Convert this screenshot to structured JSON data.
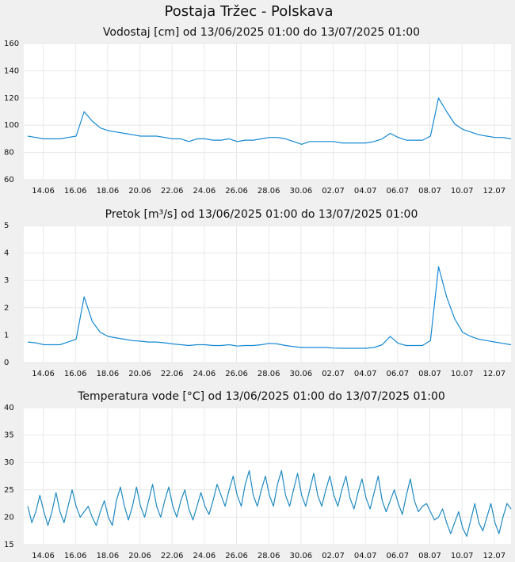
{
  "title": "Postaja Tržec - Polskava",
  "chart_data": [
    {
      "type": "line",
      "title": "Vodostaj [cm] od 13/06/2025 01:00 do 13/07/2025 01:00",
      "color": "#1589d3",
      "grid": true,
      "xlim": [
        "2025-06-12 19:00",
        "2025-07-13 01:00"
      ],
      "xticks": [
        {
          "value": "2025-06-14 00:00",
          "label": "14.06"
        },
        {
          "value": "2025-06-16 00:00",
          "label": "16.06"
        },
        {
          "value": "2025-06-18 00:00",
          "label": "18.06"
        },
        {
          "value": "2025-06-20 00:00",
          "label": "20.06"
        },
        {
          "value": "2025-06-22 00:00",
          "label": "22.06"
        },
        {
          "value": "2025-06-24 00:00",
          "label": "24.06"
        },
        {
          "value": "2025-06-26 00:00",
          "label": "26.06"
        },
        {
          "value": "2025-06-28 00:00",
          "label": "28.06"
        },
        {
          "value": "2025-06-30 00:00",
          "label": "30.06"
        },
        {
          "value": "2025-07-02 00:00",
          "label": "02.07"
        },
        {
          "value": "2025-07-04 00:00",
          "label": "04.07"
        },
        {
          "value": "2025-07-06 00:00",
          "label": "06.07"
        },
        {
          "value": "2025-07-08 00:00",
          "label": "08.07"
        },
        {
          "value": "2025-07-10 00:00",
          "label": "10.07"
        },
        {
          "value": "2025-07-12 00:00",
          "label": "12.07"
        }
      ],
      "ylim": [
        60,
        160
      ],
      "yticks": [
        60,
        80,
        100,
        120,
        140,
        160
      ],
      "x": [
        "2025-06-13 01:00",
        "2025-06-13 13:00",
        "2025-06-14 01:00",
        "2025-06-14 13:00",
        "2025-06-15 01:00",
        "2025-06-15 13:00",
        "2025-06-16 01:00",
        "2025-06-16 13:00",
        "2025-06-17 01:00",
        "2025-06-17 13:00",
        "2025-06-18 01:00",
        "2025-06-18 13:00",
        "2025-06-19 01:00",
        "2025-06-19 13:00",
        "2025-06-20 01:00",
        "2025-06-20 13:00",
        "2025-06-21 01:00",
        "2025-06-21 13:00",
        "2025-06-22 01:00",
        "2025-06-22 13:00",
        "2025-06-23 01:00",
        "2025-06-23 13:00",
        "2025-06-24 01:00",
        "2025-06-24 13:00",
        "2025-06-25 01:00",
        "2025-06-25 13:00",
        "2025-06-26 01:00",
        "2025-06-26 13:00",
        "2025-06-27 01:00",
        "2025-06-27 13:00",
        "2025-06-28 01:00",
        "2025-06-28 13:00",
        "2025-06-29 01:00",
        "2025-06-29 13:00",
        "2025-06-30 01:00",
        "2025-06-30 13:00",
        "2025-07-01 01:00",
        "2025-07-01 13:00",
        "2025-07-02 01:00",
        "2025-07-02 13:00",
        "2025-07-03 01:00",
        "2025-07-03 13:00",
        "2025-07-04 01:00",
        "2025-07-04 13:00",
        "2025-07-05 01:00",
        "2025-07-05 13:00",
        "2025-07-06 01:00",
        "2025-07-06 13:00",
        "2025-07-07 01:00",
        "2025-07-07 13:00",
        "2025-07-08 01:00",
        "2025-07-08 13:00",
        "2025-07-09 01:00",
        "2025-07-09 13:00",
        "2025-07-10 01:00",
        "2025-07-10 13:00",
        "2025-07-11 01:00",
        "2025-07-11 13:00",
        "2025-07-12 01:00",
        "2025-07-12 13:00",
        "2025-07-13 01:00"
      ],
      "values": [
        92,
        91,
        90,
        90,
        90,
        91,
        92,
        110,
        103,
        98,
        96,
        95,
        94,
        93,
        92,
        92,
        92,
        91,
        90,
        90,
        88,
        90,
        90,
        89,
        89,
        90,
        88,
        89,
        89,
        90,
        91,
        91,
        90,
        88,
        86,
        88,
        88,
        88,
        88,
        87,
        87,
        87,
        87,
        88,
        90,
        94,
        91,
        89,
        89,
        89,
        92,
        120,
        110,
        101,
        97,
        95,
        93,
        92,
        91,
        91,
        90
      ]
    },
    {
      "type": "line",
      "title": "Pretok [m³/s] od 13/06/2025 01:00 do 13/07/2025 01:00",
      "color": "#1589d3",
      "grid": true,
      "xlim": [
        "2025-06-12 19:00",
        "2025-07-13 01:00"
      ],
      "xticks": [
        {
          "value": "2025-06-14 00:00",
          "label": "14.06"
        },
        {
          "value": "2025-06-16 00:00",
          "label": "16.06"
        },
        {
          "value": "2025-06-18 00:00",
          "label": "18.06"
        },
        {
          "value": "2025-06-20 00:00",
          "label": "20.06"
        },
        {
          "value": "2025-06-22 00:00",
          "label": "22.06"
        },
        {
          "value": "2025-06-24 00:00",
          "label": "24.06"
        },
        {
          "value": "2025-06-26 00:00",
          "label": "26.06"
        },
        {
          "value": "2025-06-28 00:00",
          "label": "28.06"
        },
        {
          "value": "2025-06-30 00:00",
          "label": "30.06"
        },
        {
          "value": "2025-07-02 00:00",
          "label": "02.07"
        },
        {
          "value": "2025-07-04 00:00",
          "label": "04.07"
        },
        {
          "value": "2025-07-06 00:00",
          "label": "06.07"
        },
        {
          "value": "2025-07-08 00:00",
          "label": "08.07"
        },
        {
          "value": "2025-07-10 00:00",
          "label": "10.07"
        },
        {
          "value": "2025-07-12 00:00",
          "label": "12.07"
        }
      ],
      "ylim": [
        0,
        5
      ],
      "yticks": [
        0,
        1,
        2,
        3,
        4,
        5
      ],
      "x": [
        "2025-06-13 01:00",
        "2025-06-13 13:00",
        "2025-06-14 01:00",
        "2025-06-14 13:00",
        "2025-06-15 01:00",
        "2025-06-15 13:00",
        "2025-06-16 01:00",
        "2025-06-16 13:00",
        "2025-06-17 01:00",
        "2025-06-17 13:00",
        "2025-06-18 01:00",
        "2025-06-18 13:00",
        "2025-06-19 01:00",
        "2025-06-19 13:00",
        "2025-06-20 01:00",
        "2025-06-20 13:00",
        "2025-06-21 01:00",
        "2025-06-21 13:00",
        "2025-06-22 01:00",
        "2025-06-22 13:00",
        "2025-06-23 01:00",
        "2025-06-23 13:00",
        "2025-06-24 01:00",
        "2025-06-24 13:00",
        "2025-06-25 01:00",
        "2025-06-25 13:00",
        "2025-06-26 01:00",
        "2025-06-26 13:00",
        "2025-06-27 01:00",
        "2025-06-27 13:00",
        "2025-06-28 01:00",
        "2025-06-28 13:00",
        "2025-06-29 01:00",
        "2025-06-29 13:00",
        "2025-06-30 01:00",
        "2025-06-30 13:00",
        "2025-07-01 01:00",
        "2025-07-01 13:00",
        "2025-07-02 01:00",
        "2025-07-02 13:00",
        "2025-07-03 01:00",
        "2025-07-03 13:00",
        "2025-07-04 01:00",
        "2025-07-04 13:00",
        "2025-07-05 01:00",
        "2025-07-05 13:00",
        "2025-07-06 01:00",
        "2025-07-06 13:00",
        "2025-07-07 01:00",
        "2025-07-07 13:00",
        "2025-07-08 01:00",
        "2025-07-08 13:00",
        "2025-07-09 01:00",
        "2025-07-09 13:00",
        "2025-07-10 01:00",
        "2025-07-10 13:00",
        "2025-07-11 01:00",
        "2025-07-11 13:00",
        "2025-07-12 01:00",
        "2025-07-12 13:00",
        "2025-07-13 01:00"
      ],
      "values": [
        0.75,
        0.72,
        0.65,
        0.65,
        0.65,
        0.75,
        0.85,
        2.4,
        1.5,
        1.1,
        0.95,
        0.9,
        0.85,
        0.8,
        0.78,
        0.75,
        0.75,
        0.72,
        0.68,
        0.65,
        0.62,
        0.65,
        0.65,
        0.62,
        0.62,
        0.65,
        0.6,
        0.62,
        0.62,
        0.65,
        0.7,
        0.68,
        0.62,
        0.58,
        0.55,
        0.55,
        0.55,
        0.55,
        0.53,
        0.52,
        0.52,
        0.52,
        0.52,
        0.55,
        0.65,
        0.95,
        0.7,
        0.62,
        0.62,
        0.62,
        0.8,
        3.5,
        2.4,
        1.6,
        1.1,
        0.95,
        0.85,
        0.8,
        0.75,
        0.7,
        0.65
      ]
    },
    {
      "type": "line",
      "title": "Temperatura vode [°C] od 13/06/2025 01:00 do 13/07/2025 01:00",
      "color": "#1f8ac0",
      "grid": true,
      "xlim": [
        "2025-06-12 19:00",
        "2025-07-13 01:00"
      ],
      "xticks": [
        {
          "value": "2025-06-14 00:00",
          "label": "14.06"
        },
        {
          "value": "2025-06-16 00:00",
          "label": "16.06"
        },
        {
          "value": "2025-06-18 00:00",
          "label": "18.06"
        },
        {
          "value": "2025-06-20 00:00",
          "label": "20.06"
        },
        {
          "value": "2025-06-22 00:00",
          "label": "22.06"
        },
        {
          "value": "2025-06-24 00:00",
          "label": "24.06"
        },
        {
          "value": "2025-06-26 00:00",
          "label": "26.06"
        },
        {
          "value": "2025-06-28 00:00",
          "label": "28.06"
        },
        {
          "value": "2025-06-30 00:00",
          "label": "30.06"
        },
        {
          "value": "2025-07-02 00:00",
          "label": "02.07"
        },
        {
          "value": "2025-07-04 00:00",
          "label": "04.07"
        },
        {
          "value": "2025-07-06 00:00",
          "label": "06.07"
        },
        {
          "value": "2025-07-08 00:00",
          "label": "08.07"
        },
        {
          "value": "2025-07-10 00:00",
          "label": "10.07"
        },
        {
          "value": "2025-07-12 00:00",
          "label": "12.07"
        }
      ],
      "ylim": [
        15,
        40
      ],
      "yticks": [
        15,
        20,
        25,
        30,
        35,
        40
      ],
      "x": [
        "2025-06-13 01:00",
        "2025-06-13 07:00",
        "2025-06-13 13:00",
        "2025-06-13 19:00",
        "2025-06-14 01:00",
        "2025-06-14 07:00",
        "2025-06-14 13:00",
        "2025-06-14 19:00",
        "2025-06-15 01:00",
        "2025-06-15 07:00",
        "2025-06-15 13:00",
        "2025-06-15 19:00",
        "2025-06-16 01:00",
        "2025-06-16 07:00",
        "2025-06-16 13:00",
        "2025-06-16 19:00",
        "2025-06-17 01:00",
        "2025-06-17 07:00",
        "2025-06-17 13:00",
        "2025-06-17 19:00",
        "2025-06-18 01:00",
        "2025-06-18 07:00",
        "2025-06-18 13:00",
        "2025-06-18 19:00",
        "2025-06-19 01:00",
        "2025-06-19 07:00",
        "2025-06-19 13:00",
        "2025-06-19 19:00",
        "2025-06-20 01:00",
        "2025-06-20 07:00",
        "2025-06-20 13:00",
        "2025-06-20 19:00",
        "2025-06-21 01:00",
        "2025-06-21 07:00",
        "2025-06-21 13:00",
        "2025-06-21 19:00",
        "2025-06-22 01:00",
        "2025-06-22 07:00",
        "2025-06-22 13:00",
        "2025-06-22 19:00",
        "2025-06-23 01:00",
        "2025-06-23 07:00",
        "2025-06-23 13:00",
        "2025-06-23 19:00",
        "2025-06-24 01:00",
        "2025-06-24 07:00",
        "2025-06-24 13:00",
        "2025-06-24 19:00",
        "2025-06-25 01:00",
        "2025-06-25 07:00",
        "2025-06-25 13:00",
        "2025-06-25 19:00",
        "2025-06-26 01:00",
        "2025-06-26 07:00",
        "2025-06-26 13:00",
        "2025-06-26 19:00",
        "2025-06-27 01:00",
        "2025-06-27 07:00",
        "2025-06-27 13:00",
        "2025-06-27 19:00",
        "2025-06-28 01:00",
        "2025-06-28 07:00",
        "2025-06-28 13:00",
        "2025-06-28 19:00",
        "2025-06-29 01:00",
        "2025-06-29 07:00",
        "2025-06-29 13:00",
        "2025-06-29 19:00",
        "2025-06-30 01:00",
        "2025-06-30 07:00",
        "2025-06-30 13:00",
        "2025-06-30 19:00",
        "2025-07-01 01:00",
        "2025-07-01 07:00",
        "2025-07-01 13:00",
        "2025-07-01 19:00",
        "2025-07-02 01:00",
        "2025-07-02 07:00",
        "2025-07-02 13:00",
        "2025-07-02 19:00",
        "2025-07-03 01:00",
        "2025-07-03 07:00",
        "2025-07-03 13:00",
        "2025-07-03 19:00",
        "2025-07-04 01:00",
        "2025-07-04 07:00",
        "2025-07-04 13:00",
        "2025-07-04 19:00",
        "2025-07-05 01:00",
        "2025-07-05 07:00",
        "2025-07-05 13:00",
        "2025-07-05 19:00",
        "2025-07-06 01:00",
        "2025-07-06 07:00",
        "2025-07-06 13:00",
        "2025-07-06 19:00",
        "2025-07-07 01:00",
        "2025-07-07 07:00",
        "2025-07-07 13:00",
        "2025-07-07 19:00",
        "2025-07-08 01:00",
        "2025-07-08 07:00",
        "2025-07-08 13:00",
        "2025-07-08 19:00",
        "2025-07-09 01:00",
        "2025-07-09 07:00",
        "2025-07-09 13:00",
        "2025-07-09 19:00",
        "2025-07-10 01:00",
        "2025-07-10 07:00",
        "2025-07-10 13:00",
        "2025-07-10 19:00",
        "2025-07-11 01:00",
        "2025-07-11 07:00",
        "2025-07-11 13:00",
        "2025-07-11 19:00",
        "2025-07-12 01:00",
        "2025-07-12 07:00",
        "2025-07-12 13:00",
        "2025-07-12 19:00",
        "2025-07-13 01:00"
      ],
      "values": [
        22,
        19,
        21,
        24,
        21,
        18.5,
        21,
        24.5,
        21,
        19,
        22,
        25,
        22,
        20,
        21,
        22,
        20,
        18.5,
        21,
        23,
        20,
        18.5,
        23,
        25.5,
        22,
        19.5,
        22,
        25.5,
        22,
        20,
        23,
        26,
        22,
        20,
        23,
        25.5,
        22,
        20,
        23,
        25,
        21.5,
        19.5,
        22,
        24.5,
        22,
        20.5,
        23,
        26,
        24,
        22,
        25,
        27.5,
        24,
        22,
        26,
        28.5,
        24,
        22,
        25,
        27.5,
        24,
        22,
        26,
        28.5,
        24,
        22,
        25,
        28,
        24,
        22,
        25,
        28,
        24,
        22,
        25,
        27.5,
        24,
        22,
        25,
        27.5,
        23.5,
        21.5,
        24.5,
        27,
        23.5,
        21.5,
        24.5,
        27.5,
        23,
        21,
        23,
        25,
        22.5,
        20.5,
        24,
        27,
        23,
        21,
        22,
        22.5,
        21,
        19.5,
        20,
        21.5,
        19,
        17,
        19,
        21,
        18,
        16.5,
        19.5,
        22.5,
        19,
        17.5,
        20,
        22.5,
        19,
        17,
        20,
        22.5,
        21.5
      ]
    }
  ]
}
